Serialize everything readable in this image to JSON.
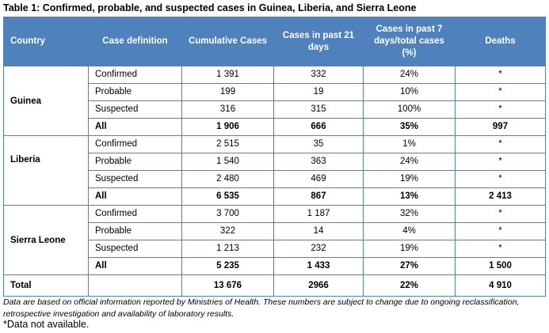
{
  "caption": "Table 1: Confirmed, probable, and suspected cases in Guinea, Liberia, and Sierra Leone",
  "headers": [
    "Country",
    "Case definition",
    "Cumulative Cases",
    "Cases in past 21 days",
    "Cases in past 7 days/total cases (%)",
    "Deaths"
  ],
  "countries": [
    {
      "name": "Guinea",
      "rows": [
        {
          "def": "Confirmed",
          "cumulative": "1 391",
          "past21": "332",
          "past7": "24%",
          "deaths": "*"
        },
        {
          "def": "Probable",
          "cumulative": "199",
          "past21": "19",
          "past7": "10%",
          "deaths": "*"
        },
        {
          "def": "Suspected",
          "cumulative": "316",
          "past21": "315",
          "past7": "100%",
          "deaths": "*"
        },
        {
          "def": "All",
          "cumulative": "1 906",
          "past21": "666",
          "past7": "35%",
          "deaths": "997"
        }
      ]
    },
    {
      "name": "Liberia",
      "rows": [
        {
          "def": "Confirmed",
          "cumulative": "2 515",
          "past21": "35",
          "past7": "1%",
          "deaths": "*"
        },
        {
          "def": "Probable",
          "cumulative": "1 540",
          "past21": "363",
          "past7": "24%",
          "deaths": "*"
        },
        {
          "def": "Suspected",
          "cumulative": "2 480",
          "past21": "469",
          "past7": "19%",
          "deaths": "*"
        },
        {
          "def": "All",
          "cumulative": "6 535",
          "past21": "867",
          "past7": "13%",
          "deaths": "2 413"
        }
      ]
    },
    {
      "name": "Sierra Leone",
      "rows": [
        {
          "def": "Confirmed",
          "cumulative": "3 700",
          "past21": "1 187",
          "past7": "32%",
          "deaths": "*"
        },
        {
          "def": "Probable",
          "cumulative": "322",
          "past21": "14",
          "past7": "4%",
          "deaths": "*"
        },
        {
          "def": "Suspected",
          "cumulative": "1 213",
          "past21": "232",
          "past7": "19%",
          "deaths": "*"
        },
        {
          "def": "All",
          "cumulative": "5 235",
          "past21": "1 433",
          "past7": "27%",
          "deaths": "1 500"
        }
      ]
    }
  ],
  "total": {
    "label": "Total",
    "cumulative": "13 676",
    "past21": "2966",
    "past7": "22%",
    "deaths": "4 910"
  },
  "note": "Data are based on official information reported by Ministries of Health. These numbers are subject to change due to ongoing reclassification, retrospective investigation and availability of laboratory results.",
  "footnote": "*Data not available.",
  "colors": {
    "header_bg": "#4f81bd",
    "header_text": "#ffffff",
    "border": "#4f81bd"
  }
}
